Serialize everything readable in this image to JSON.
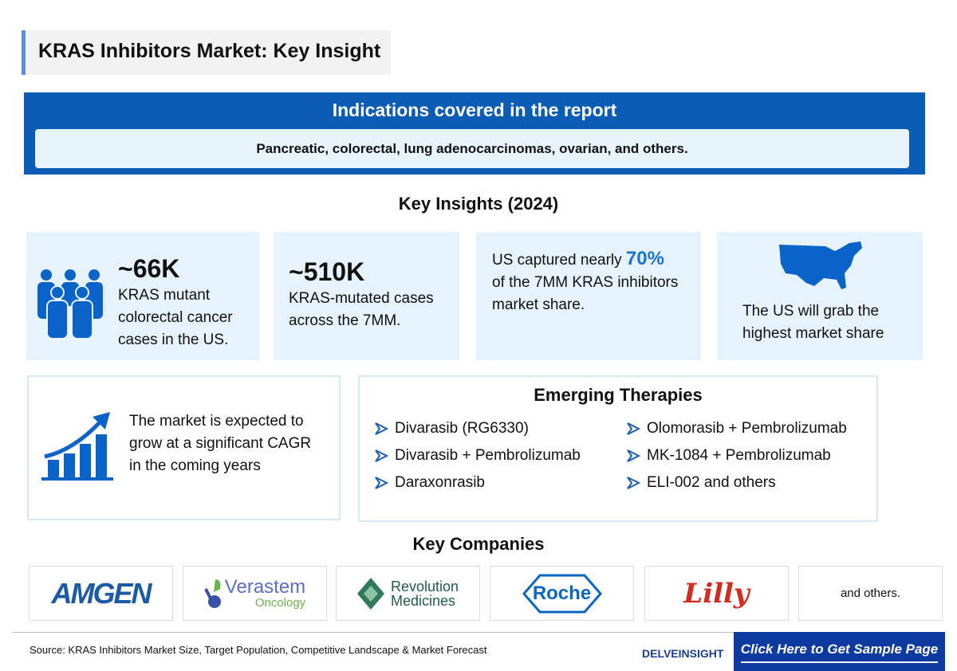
{
  "title": "KRAS Inhibitors Market: Key Insight",
  "indications": {
    "heading": "Indications covered in the report",
    "text": "Pancreatic, colorectal, lung adenocarcinomas, ovarian, and others."
  },
  "key_insights": {
    "heading": "Key Insights (2024)",
    "cards": [
      {
        "value": "~66K",
        "text": [
          "KRAS mutant",
          "colorectal cancer",
          "cases in the US."
        ],
        "icon": "people-group-icon"
      },
      {
        "value": "~510K",
        "text": [
          "KRAS-mutated cases",
          "across the 7MM."
        ]
      },
      {
        "prefix": "US captured nearly ",
        "value": "70%",
        "text": [
          "of the 7MM KRAS inhibitors",
          "market share."
        ]
      },
      {
        "text": [
          "The US will grab the",
          "highest market share"
        ],
        "icon": "us-map-icon"
      }
    ]
  },
  "growth": {
    "text": [
      "The market is expected to",
      "grow at a significant CAGR",
      "in the coming years"
    ],
    "icon": "growth-chart-icon"
  },
  "emerging": {
    "heading": "Emerging Therapies",
    "items": [
      "Divarasib (RG6330)",
      "Divarasib + Pembrolizumab",
      "Daraxonrasib",
      "Olomorasib + Pembrolizumab",
      "MK-1084 + Pembrolizumab",
      "ELI-002 and others"
    ]
  },
  "companies": {
    "heading": "Key Companies",
    "logos": [
      "AMGEN",
      "Verastem",
      "Oncology",
      "Revolution",
      "Medicines",
      "Roche",
      "Lilly"
    ],
    "others": "and others."
  },
  "footer": {
    "source": "Source: KRAS Inhibitors Market Size, Target Population, Competitive Landscape & Market Forecast",
    "brand": "DELVEINSIGHT",
    "cta": "Click Here to Get Sample Page"
  },
  "colors": {
    "primary": "#0a5cb4",
    "card_bg": "#e6f3fd",
    "cta": "#0d3a9e",
    "accent": "#1a73d0"
  }
}
